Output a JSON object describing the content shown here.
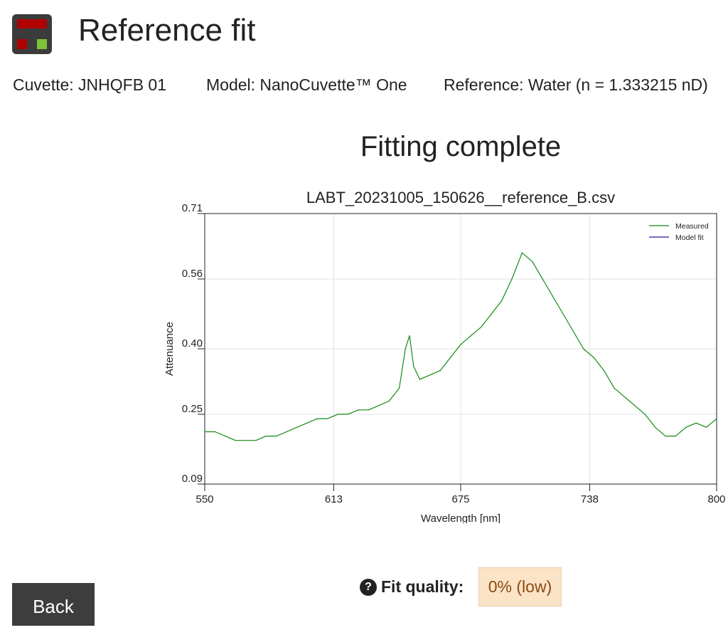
{
  "header": {
    "title": "Reference fit",
    "logo_icon": "app-logo-icon"
  },
  "info": {
    "cuvette": "Cuvette: JNHQFB 01",
    "model": "Model: NanoCuvette™ One",
    "reference": "Reference: Water (n = 1.333215 nD)"
  },
  "status": "Fitting complete",
  "chart_data": {
    "type": "line",
    "title": "LABT_20231005_150626__reference_B.csv",
    "xlabel": "Wavelength [nm]",
    "ylabel": "Attenuance",
    "xlim": [
      550,
      800
    ],
    "ylim": [
      0.09,
      0.71
    ],
    "x_ticks": [
      "550",
      "613",
      "675",
      "738",
      "800"
    ],
    "y_ticks": [
      "0.71",
      "0.56",
      "0.40",
      "0.25",
      "0.09"
    ],
    "grid": true,
    "legend_position": "top-right",
    "series": [
      {
        "name": "Measured",
        "color": "#128a12",
        "x": [
          550,
          555,
          560,
          565,
          570,
          575,
          580,
          585,
          590,
          595,
          600,
          605,
          610,
          615,
          620,
          625,
          630,
          635,
          640,
          645,
          648,
          650,
          652,
          655,
          660,
          665,
          670,
          675,
          680,
          685,
          690,
          695,
          700,
          705,
          710,
          715,
          720,
          725,
          730,
          735,
          740,
          745,
          750,
          755,
          760,
          765,
          770,
          775,
          780,
          785,
          790,
          795,
          800
        ],
        "y": [
          0.21,
          0.21,
          0.2,
          0.19,
          0.19,
          0.19,
          0.2,
          0.2,
          0.21,
          0.22,
          0.23,
          0.24,
          0.24,
          0.25,
          0.25,
          0.26,
          0.26,
          0.27,
          0.28,
          0.31,
          0.4,
          0.43,
          0.36,
          0.33,
          0.34,
          0.35,
          0.38,
          0.41,
          0.43,
          0.45,
          0.48,
          0.51,
          0.56,
          0.62,
          0.6,
          0.56,
          0.52,
          0.48,
          0.44,
          0.4,
          0.38,
          0.35,
          0.31,
          0.29,
          0.27,
          0.25,
          0.22,
          0.2,
          0.2,
          0.22,
          0.23,
          0.22,
          0.24
        ]
      },
      {
        "name": "Model fit",
        "color": "#1f1f9a",
        "x": [],
        "y": []
      }
    ]
  },
  "fit_quality": {
    "label": "Fit quality:",
    "value": "0% (low)",
    "help_icon": "help-circle-icon"
  },
  "actions": {
    "back_label": "Back"
  }
}
